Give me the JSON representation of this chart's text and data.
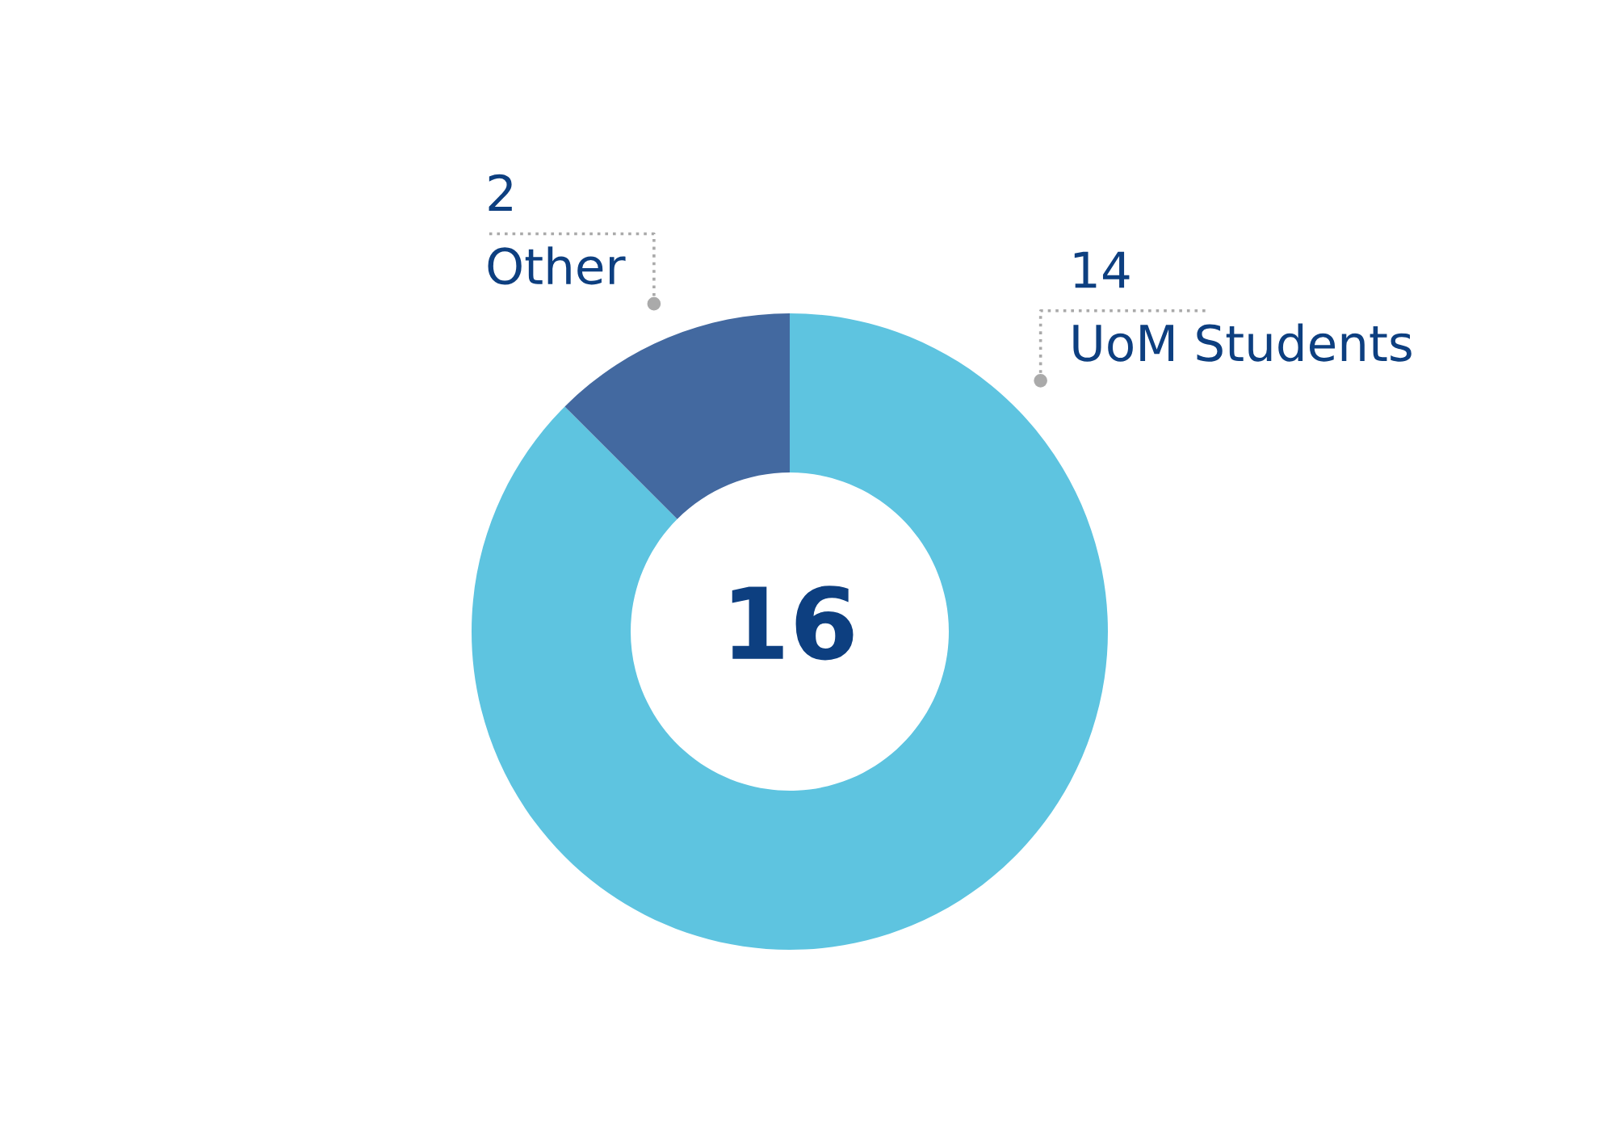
{
  "chart_data": {
    "type": "donut",
    "categories": [
      "UoM Students",
      "Other"
    ],
    "values": [
      14,
      2
    ],
    "colors": [
      "#5ec4e0",
      "#4369a0"
    ],
    "data_labels": true,
    "annotations": [
      "16"
    ]
  }
}
